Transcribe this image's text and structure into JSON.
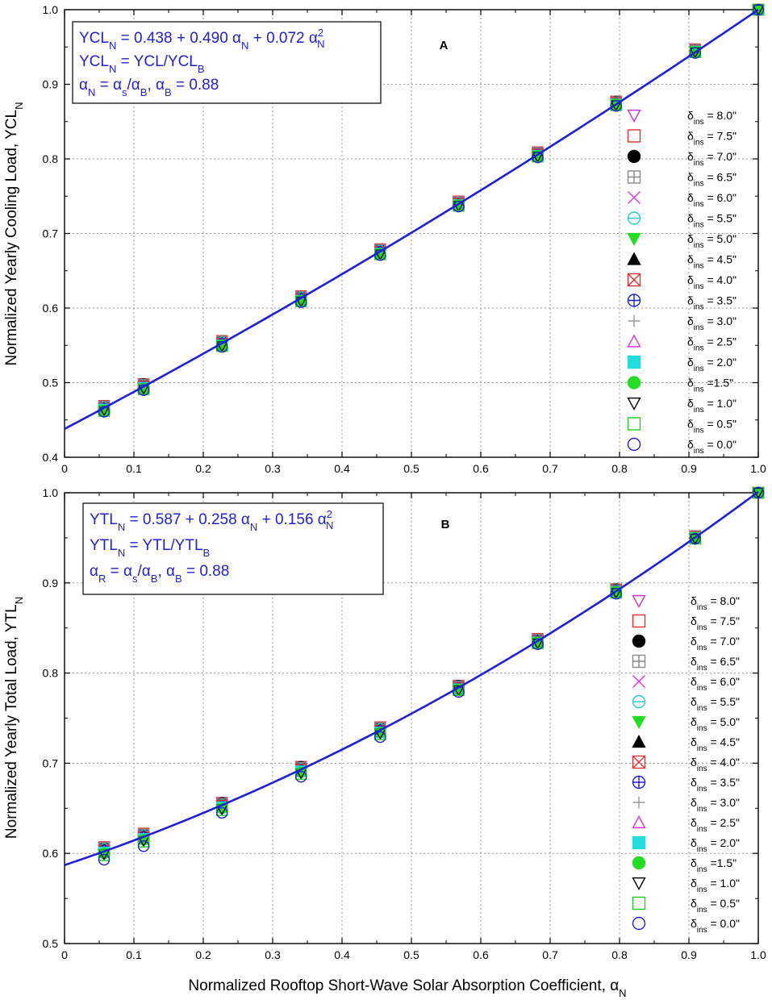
{
  "figure": {
    "xlabel_main": "Normalized Rooftop Short-Wave Solar Absorption Coefficient, ",
    "xlabel_symbol": "α",
    "xlabel_sub": "N"
  },
  "chart_data": [
    {
      "type": "line",
      "panel_label": "A",
      "ylabel_main": "Normalized Yearly Cooling Load, YCL",
      "ylabel_sub": "N",
      "xlim": [
        0,
        1.0
      ],
      "ylim": [
        0.4,
        1.0
      ],
      "x_ticks": [
        0,
        0.1,
        0.2,
        0.3,
        0.4,
        0.5,
        0.6,
        0.7,
        0.8,
        0.9,
        1.0
      ],
      "x_tick_labels": [
        "0",
        "0.1",
        "0.2",
        "0.3",
        "0.4",
        "0.5",
        "0.6",
        "0.7",
        "0.8",
        "0.9",
        "1.0"
      ],
      "y_ticks": [
        0.4,
        0.5,
        0.6,
        0.7,
        0.8,
        0.9,
        1.0
      ],
      "y_tick_labels": [
        "0.4",
        "0.5",
        "0.6",
        "0.7",
        "0.8",
        "0.9",
        "1.0"
      ],
      "grid": true,
      "fit": {
        "a": 0.438,
        "b": 0.49,
        "c": 0.072,
        "color": "#1f1fd6"
      },
      "equations": [
        {
          "pre": "YCL",
          "pre_sub": "N",
          "body": " =  0.438 + 0.490 α",
          "body_sub": "N",
          "tail": " + 0.072 α",
          "tail_sup": "2",
          "tail_sub": "N"
        },
        {
          "pre": "YCL",
          "pre_sub": "N",
          "body": " = YCL/YCL",
          "body_sub": "B",
          "tail": "",
          "tail_sup": "",
          "tail_sub": ""
        },
        {
          "pre": "α",
          "pre_sub": "N",
          "body": " = α",
          "body_sub": "s",
          "tail": "/α",
          "tail_sub": "B",
          "tail2": ", α",
          "tail2_sub": "B",
          "tail3": " = 0.88"
        }
      ],
      "x": [
        0.057,
        0.114,
        0.227,
        0.341,
        0.455,
        0.568,
        0.682,
        0.795,
        0.909,
        1.0
      ],
      "series": [
        {
          "name": "8.0\"",
          "marker": "tri-down-open",
          "color": "#cc33cc",
          "values": [
            0.469,
            0.499,
            0.556,
            0.616,
            0.679,
            0.743,
            0.809,
            0.877,
            0.947,
            1.0
          ]
        },
        {
          "name": "7.5\"",
          "marker": "square-open",
          "color": "#e03030",
          "values": [
            0.469,
            0.498,
            0.556,
            0.616,
            0.679,
            0.743,
            0.809,
            0.877,
            0.947,
            1.0
          ]
        },
        {
          "name": "7.0\"",
          "marker": "circle-filled",
          "color": "#000000",
          "values": [
            0.468,
            0.498,
            0.555,
            0.615,
            0.678,
            0.742,
            0.808,
            0.877,
            0.946,
            1.0
          ]
        },
        {
          "name": "6.5\"",
          "marker": "square-plus",
          "color": "#888888",
          "values": [
            0.468,
            0.497,
            0.555,
            0.615,
            0.678,
            0.742,
            0.808,
            0.876,
            0.946,
            1.0
          ]
        },
        {
          "name": "6.0\"",
          "marker": "x",
          "color": "#dd33dd",
          "values": [
            0.467,
            0.497,
            0.554,
            0.614,
            0.677,
            0.742,
            0.808,
            0.876,
            0.946,
            1.0
          ]
        },
        {
          "name": "5.5\"",
          "marker": "circle-minus",
          "color": "#22cccc",
          "values": [
            0.467,
            0.496,
            0.554,
            0.614,
            0.677,
            0.741,
            0.807,
            0.876,
            0.946,
            1.0
          ]
        },
        {
          "name": "5.0\"",
          "marker": "tri-down-filled",
          "color": "#22dd22",
          "values": [
            0.466,
            0.496,
            0.553,
            0.613,
            0.676,
            0.741,
            0.807,
            0.875,
            0.945,
            1.0
          ]
        },
        {
          "name": "4.5\"",
          "marker": "tri-up-filled",
          "color": "#000000",
          "values": [
            0.466,
            0.495,
            0.553,
            0.613,
            0.676,
            0.74,
            0.806,
            0.875,
            0.945,
            1.0
          ]
        },
        {
          "name": "4.0\"",
          "marker": "square-x",
          "color": "#e03030",
          "values": [
            0.465,
            0.495,
            0.552,
            0.612,
            0.675,
            0.74,
            0.806,
            0.875,
            0.945,
            1.0
          ]
        },
        {
          "name": "3.5\"",
          "marker": "circle-plus",
          "color": "#1f1fd6",
          "values": [
            0.465,
            0.494,
            0.552,
            0.612,
            0.675,
            0.739,
            0.805,
            0.874,
            0.944,
            1.0
          ]
        },
        {
          "name": "3.0\"",
          "marker": "plus",
          "color": "#999999",
          "values": [
            0.464,
            0.494,
            0.551,
            0.611,
            0.674,
            0.739,
            0.805,
            0.874,
            0.944,
            1.0
          ]
        },
        {
          "name": "2.5\"",
          "marker": "tri-up-open",
          "color": "#dd33dd",
          "values": [
            0.464,
            0.493,
            0.551,
            0.611,
            0.674,
            0.738,
            0.805,
            0.874,
            0.944,
            1.0
          ]
        },
        {
          "name": "2.0\"",
          "marker": "square-filled",
          "color": "#22dddd",
          "values": [
            0.464,
            0.493,
            0.55,
            0.61,
            0.673,
            0.738,
            0.804,
            0.873,
            0.944,
            1.0
          ]
        },
        {
          "name": "1.5\"",
          "marker": "circle-filled",
          "color": "#22dd22",
          "values": [
            0.463,
            0.492,
            0.55,
            0.61,
            0.673,
            0.738,
            0.804,
            0.873,
            0.943,
            1.0
          ]
        },
        {
          "name": "1.0\"",
          "marker": "tri-down-open",
          "color": "#000000",
          "values": [
            0.463,
            0.492,
            0.549,
            0.609,
            0.672,
            0.737,
            0.803,
            0.872,
            0.943,
            1.0
          ]
        },
        {
          "name": "0.5\"",
          "marker": "square-open",
          "color": "#22cc22",
          "values": [
            0.462,
            0.491,
            0.549,
            0.609,
            0.672,
            0.737,
            0.803,
            0.872,
            0.943,
            1.0
          ]
        },
        {
          "name": "0.0\"",
          "marker": "circle-open",
          "color": "#1f1fd6",
          "values": [
            0.461,
            0.49,
            0.548,
            0.608,
            0.671,
            0.736,
            0.802,
            0.871,
            0.942,
            1.0
          ]
        }
      ]
    },
    {
      "type": "line",
      "panel_label": "B",
      "ylabel_main": "Normalized Yearly Total Load, YTL",
      "ylabel_sub": "N",
      "xlim": [
        0,
        1.0
      ],
      "ylim": [
        0.5,
        1.0
      ],
      "x_ticks": [
        0,
        0.1,
        0.2,
        0.3,
        0.4,
        0.5,
        0.6,
        0.7,
        0.8,
        0.9,
        1.0
      ],
      "x_tick_labels": [
        "0",
        "0.1",
        "0.2",
        "0.3",
        "0.4",
        "0.5",
        "0.6",
        "0.7",
        "0.8",
        "0.9",
        "1.0"
      ],
      "y_ticks": [
        0.5,
        0.6,
        0.7,
        0.8,
        0.9,
        1.0
      ],
      "y_tick_labels": [
        "0.5",
        "0.6",
        "0.7",
        "0.8",
        "0.9",
        "1.0"
      ],
      "grid": true,
      "fit": {
        "a": 0.587,
        "b": 0.258,
        "c": 0.156,
        "color": "#1f1fd6"
      },
      "equations": [
        {
          "pre": "YTL",
          "pre_sub": "N",
          "body": " = 0.587 + 0.258 α",
          "body_sub": "N",
          "tail": " + 0.156 α",
          "tail_sup": "2",
          "tail_sub": "N"
        },
        {
          "pre": "YTL",
          "pre_sub": "N",
          "body": " = YTL/YTL",
          "body_sub": "B",
          "tail": "",
          "tail_sup": "",
          "tail_sub": ""
        },
        {
          "pre": "α",
          "pre_sub": "R",
          "body": " = α",
          "body_sub": "s",
          "tail": "/α",
          "tail_sub": "B",
          "tail2": ", α",
          "tail2_sub": "B",
          "tail3": " = 0.88"
        }
      ],
      "x": [
        0.057,
        0.114,
        0.227,
        0.341,
        0.455,
        0.568,
        0.682,
        0.795,
        0.909,
        1.0
      ],
      "series": [
        {
          "name": "8.0\"",
          "marker": "tri-down-open",
          "color": "#cc33cc",
          "values": [
            0.607,
            0.622,
            0.657,
            0.697,
            0.74,
            0.786,
            0.838,
            0.893,
            0.952,
            1.0
          ]
        },
        {
          "name": "7.5\"",
          "marker": "square-open",
          "color": "#e03030",
          "values": [
            0.607,
            0.622,
            0.656,
            0.696,
            0.74,
            0.786,
            0.838,
            0.893,
            0.952,
            1.0
          ]
        },
        {
          "name": "7.0\"",
          "marker": "circle-filled",
          "color": "#000000",
          "values": [
            0.606,
            0.621,
            0.656,
            0.696,
            0.739,
            0.786,
            0.837,
            0.893,
            0.952,
            1.0
          ]
        },
        {
          "name": "6.5\"",
          "marker": "square-plus",
          "color": "#888888",
          "values": [
            0.606,
            0.621,
            0.655,
            0.695,
            0.739,
            0.785,
            0.837,
            0.892,
            0.952,
            1.0
          ]
        },
        {
          "name": "6.0\"",
          "marker": "x",
          "color": "#dd33dd",
          "values": [
            0.605,
            0.62,
            0.655,
            0.695,
            0.738,
            0.785,
            0.837,
            0.892,
            0.951,
            1.0
          ]
        },
        {
          "name": "5.5\"",
          "marker": "circle-minus",
          "color": "#22cccc",
          "values": [
            0.605,
            0.62,
            0.654,
            0.694,
            0.738,
            0.785,
            0.836,
            0.892,
            0.951,
            1.0
          ]
        },
        {
          "name": "5.0\"",
          "marker": "tri-down-filled",
          "color": "#22dd22",
          "values": [
            0.604,
            0.619,
            0.654,
            0.694,
            0.737,
            0.784,
            0.836,
            0.892,
            0.951,
            1.0
          ]
        },
        {
          "name": "4.5\"",
          "marker": "tri-up-filled",
          "color": "#000000",
          "values": [
            0.604,
            0.619,
            0.653,
            0.693,
            0.737,
            0.784,
            0.836,
            0.891,
            0.951,
            1.0
          ]
        },
        {
          "name": "4.0\"",
          "marker": "square-x",
          "color": "#e03030",
          "values": [
            0.603,
            0.618,
            0.653,
            0.693,
            0.736,
            0.784,
            0.835,
            0.891,
            0.951,
            1.0
          ]
        },
        {
          "name": "3.5\"",
          "marker": "circle-plus",
          "color": "#1f1fd6",
          "values": [
            0.603,
            0.618,
            0.652,
            0.692,
            0.736,
            0.783,
            0.835,
            0.891,
            0.95,
            1.0
          ]
        },
        {
          "name": "3.0\"",
          "marker": "plus",
          "color": "#999999",
          "values": [
            0.602,
            0.617,
            0.652,
            0.692,
            0.735,
            0.783,
            0.835,
            0.891,
            0.95,
            1.0
          ]
        },
        {
          "name": "2.5\"",
          "marker": "tri-up-open",
          "color": "#dd33dd",
          "values": [
            0.602,
            0.617,
            0.651,
            0.691,
            0.735,
            0.783,
            0.834,
            0.89,
            0.95,
            1.0
          ]
        },
        {
          "name": "2.0\"",
          "marker": "square-filled",
          "color": "#22dddd",
          "values": [
            0.601,
            0.616,
            0.651,
            0.691,
            0.734,
            0.782,
            0.834,
            0.89,
            0.95,
            1.0
          ]
        },
        {
          "name": "1.5\"",
          "marker": "circle-filled",
          "color": "#22dd22",
          "values": [
            0.6,
            0.615,
            0.65,
            0.69,
            0.734,
            0.782,
            0.834,
            0.89,
            0.95,
            1.0
          ]
        },
        {
          "name": "1.0\"",
          "marker": "tri-down-open",
          "color": "#000000",
          "values": [
            0.599,
            0.614,
            0.649,
            0.689,
            0.733,
            0.781,
            0.833,
            0.889,
            0.949,
            1.0
          ]
        },
        {
          "name": "0.5\"",
          "marker": "square-open",
          "color": "#22cc22",
          "values": [
            0.598,
            0.613,
            0.648,
            0.688,
            0.732,
            0.781,
            0.833,
            0.889,
            0.949,
            1.0
          ]
        },
        {
          "name": "0.0\"",
          "marker": "circle-open",
          "color": "#1f1fd6",
          "values": [
            0.593,
            0.608,
            0.645,
            0.685,
            0.729,
            0.779,
            0.832,
            0.888,
            0.949,
            1.0
          ]
        }
      ]
    }
  ],
  "legend": {
    "symbol": "δ",
    "sub": "ins",
    "labels": [
      " = 8.0\"",
      " = 7.5\"",
      " = 7.0\"",
      " = 6.5\"",
      " = 6.0\"",
      " = 5.5\"",
      " = 5.0\"",
      " = 4.5\"",
      " = 4.0\"",
      " = 3.5\"",
      " = 3.0\"",
      " = 2.5\"",
      " = 2.0\"",
      " =1.5\"",
      " = 1.0\"",
      " = 0.5\"",
      " = 0.0\""
    ]
  }
}
